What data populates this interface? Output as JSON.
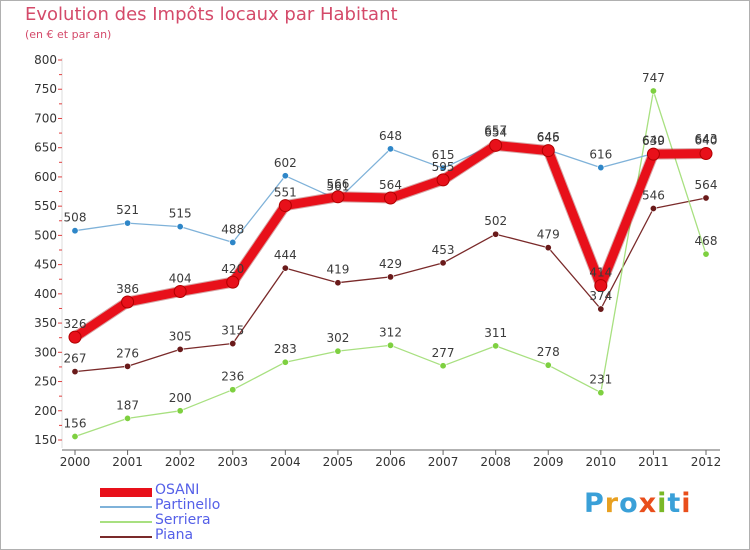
{
  "header": {
    "title": "Evolution des Impôts locaux par Habitant",
    "subtitle": "(en € et par an)"
  },
  "logo": {
    "text": "Proxiti",
    "letter_colors": [
      "#3aa0d8",
      "#e8a020",
      "#3aa0d8",
      "#e94e1b",
      "#7ab827",
      "#3aa0d8",
      "#e94e1b"
    ]
  },
  "chart_data": {
    "type": "line",
    "x": [
      "2000",
      "2001",
      "2002",
      "2003",
      "2004",
      "2005",
      "2006",
      "2007",
      "2008",
      "2009",
      "2010",
      "2011",
      "2012"
    ],
    "ylim": [
      150,
      800
    ],
    "yticks": [
      150,
      200,
      250,
      300,
      350,
      400,
      450,
      500,
      550,
      600,
      650,
      700,
      750,
      800
    ],
    "grid": false,
    "legend_position": "bottom-left",
    "series": [
      {
        "name": "OSANI",
        "color": "#e8101a",
        "marker": "#e8101a",
        "width": "heavy",
        "show_labels": true,
        "values": [
          326,
          386,
          404,
          420,
          551,
          566,
          564,
          595,
          654,
          645,
          414,
          639,
          640
        ],
        "labels": [
          "326",
          "386",
          "404",
          "420",
          "551",
          "566",
          "564",
          "595",
          "654",
          "645",
          "414",
          "639",
          "640"
        ]
      },
      {
        "name": "Partinello",
        "color": "#7fb2d9",
        "marker": "#2e86c8",
        "width": "thin",
        "show_labels": true,
        "values": [
          508,
          521,
          515,
          488,
          602,
          561,
          648,
          615,
          657,
          646,
          616,
          640,
          643
        ],
        "labels": [
          "508",
          "521",
          "515",
          "488",
          "602",
          "561",
          "648",
          "615",
          "657",
          "646",
          "616",
          "640",
          "643"
        ]
      },
      {
        "name": "Serriera",
        "color": "#a8e080",
        "marker": "#7ed040",
        "width": "thin",
        "show_labels": true,
        "values": [
          156,
          187,
          200,
          236,
          283,
          302,
          312,
          277,
          311,
          278,
          231,
          747,
          468
        ],
        "labels": [
          "156",
          "187",
          "200",
          "236",
          "283",
          "302",
          "312",
          "277",
          "311",
          "278",
          "231",
          "747",
          "468"
        ]
      },
      {
        "name": "Piana",
        "color": "#7a2a2a",
        "marker": "#6a1a1a",
        "width": "thin",
        "show_labels": true,
        "values": [
          267,
          276,
          305,
          315,
          444,
          419,
          429,
          453,
          502,
          479,
          374,
          546,
          564
        ],
        "labels": [
          "267",
          "276",
          "305",
          "315",
          "444",
          "419",
          "429",
          "453",
          "502",
          "479",
          "374",
          "546",
          "564"
        ]
      }
    ]
  }
}
